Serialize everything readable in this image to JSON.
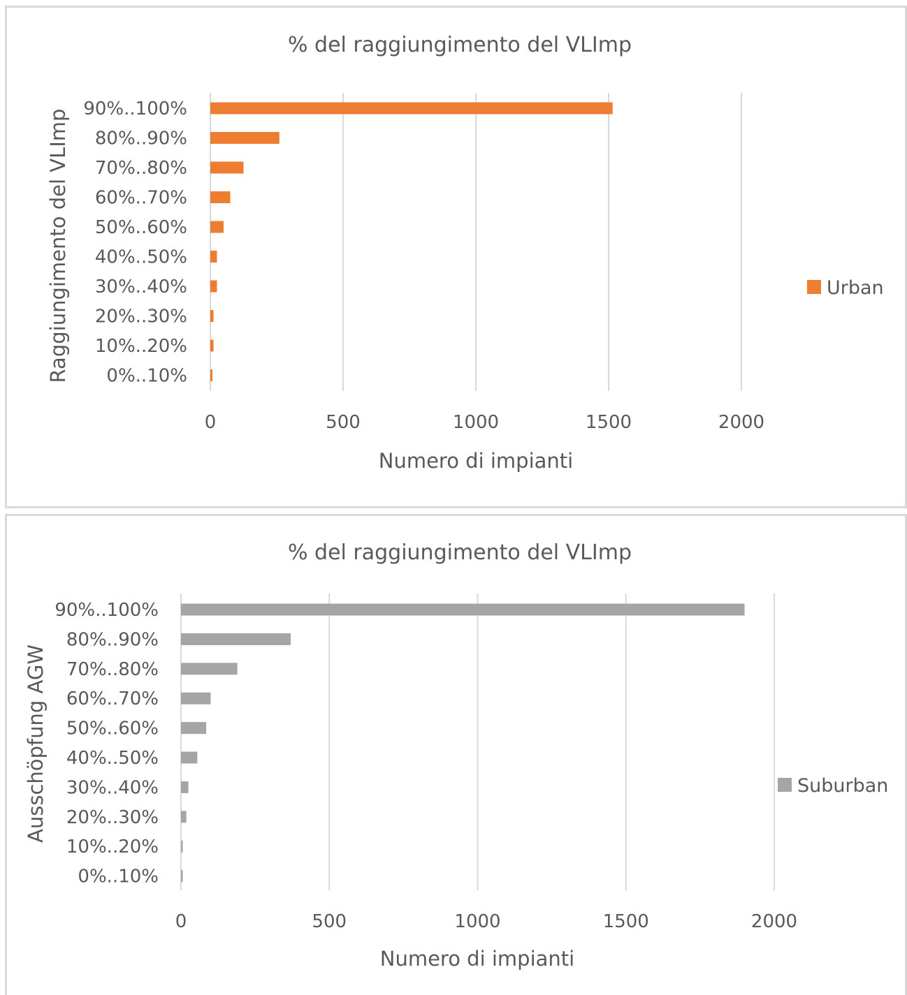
{
  "chart_data": [
    {
      "type": "bar",
      "orientation": "horizontal",
      "title": "% del raggiungimento del VLImp",
      "xlabel": "Numero di impianti",
      "ylabel": "Raggiungimento del VLImp",
      "xlim": [
        0,
        2000
      ],
      "xticks": [
        "0",
        "500",
        "1000",
        "1500",
        "2000"
      ],
      "grid": true,
      "legend_position": "right",
      "categories": [
        "90%..100%",
        "80%..90%",
        "70%..80%",
        "60%..70%",
        "50%..60%",
        "40%..50%",
        "30%..40%",
        "20%..30%",
        "10%..20%",
        "0%..10%"
      ],
      "series": [
        {
          "name": "Urban",
          "color": "#ed7d31",
          "values": [
            1515,
            260,
            125,
            75,
            50,
            25,
            25,
            12,
            12,
            8
          ]
        }
      ]
    },
    {
      "type": "bar",
      "orientation": "horizontal",
      "title": "% del raggiungimento del VLImp",
      "xlabel": "Numero di impianti",
      "ylabel": "Ausschöpfung AGW",
      "xlim": [
        0,
        2000
      ],
      "xticks": [
        "0",
        "500",
        "1000",
        "1500",
        "2000"
      ],
      "grid": true,
      "legend_position": "right",
      "categories": [
        "90%..100%",
        "80%..90%",
        "70%..80%",
        "60%..70%",
        "50%..60%",
        "40%..50%",
        "30%..40%",
        "20%..30%",
        "10%..20%",
        "0%..10%"
      ],
      "series": [
        {
          "name": "Suburban",
          "color": "#a5a5a5",
          "values": [
            1900,
            370,
            190,
            100,
            85,
            55,
            25,
            18,
            6,
            6
          ]
        }
      ]
    }
  ]
}
